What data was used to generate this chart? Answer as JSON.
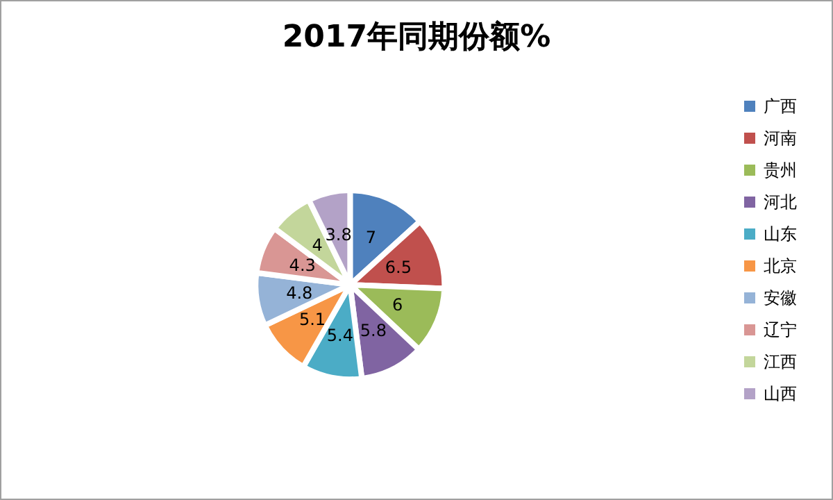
{
  "chart_data": {
    "type": "pie",
    "title": "2017年同期份额%",
    "categories": [
      "广西",
      "河南",
      "贵州",
      "河北",
      "山东",
      "北京",
      "安徽",
      "辽宁",
      "江西",
      "山西"
    ],
    "values": [
      7,
      6.5,
      6,
      5.8,
      5.4,
      5.1,
      4.8,
      4.3,
      4,
      3.8
    ],
    "colors": [
      "#4f81bd",
      "#c0504d",
      "#9bbb59",
      "#8064a2",
      "#4bacc6",
      "#f79646",
      "#95b3d7",
      "#d99694",
      "#c3d69b",
      "#b3a2c7"
    ],
    "data_labels": true,
    "legend": "right"
  }
}
